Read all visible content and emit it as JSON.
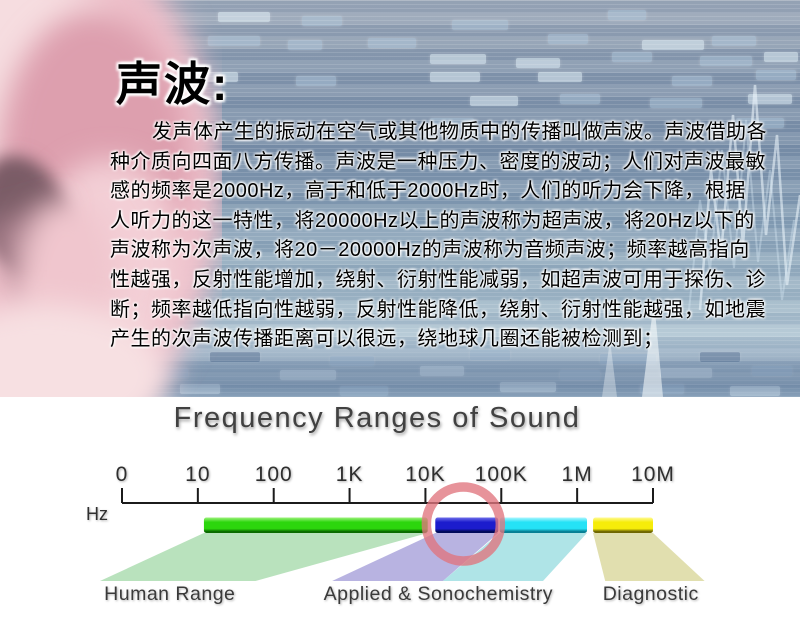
{
  "slide": {
    "title": "声波:",
    "paragraph_lines": [
      "发声体产生的振动在空气或其他物质中的传播叫做声波。声波借助各",
      "种介质向四面八方传播。声波是一种压力、密度的波动；人们对声波最敏",
      "感的频率是2000Hz，高于和低于2000Hz时，人们的听力会下降，根据",
      "人听力的这一特性，将20000Hz以上的声波称为超声波，将20Hz以下的",
      "声波称为次声波，将20－20000Hz的声波称为音频声波；频率越高指向",
      "性越强，反射性能增加，绕射、衍射性能减弱，如超声波可用于探伤、诊",
      "断；频率越低指向性越弱，反射性能降低，绕射、衍射性能越强，如地震",
      "产生的次声波传播距离可以很远，绕地球几圈还能被检测到；"
    ]
  },
  "chart_data": {
    "type": "bar",
    "title": "Frequency Ranges of Sound",
    "axis_unit": "Hz",
    "scale": "log10-decades",
    "tick_labels": [
      "0",
      "10",
      "100",
      "1K",
      "10K",
      "100K",
      "1M",
      "10M"
    ],
    "axis_color": "#1b1b1b",
    "bars": [
      {
        "name": "human-range-bar",
        "color": "#2cd60d",
        "light": "#9ef27d",
        "dark": "#0a6b00",
        "from": 1.08,
        "to": 4.03
      },
      {
        "name": "applied-low-bar",
        "color": "#1c1ccd",
        "light": "#7070ea",
        "dark": "#000a5a",
        "from": 4.13,
        "to": 4.96
      },
      {
        "name": "applied-high-bar",
        "color": "#25e2f6",
        "light": "#aef6ff",
        "dark": "#077f94",
        "from": 4.98,
        "to": 6.13
      },
      {
        "name": "diagnostic-bar",
        "color": "#f6ec0a",
        "light": "#fffa96",
        "dark": "#6f6600",
        "from": 6.21,
        "to": 7.0
      }
    ],
    "beams": [
      {
        "name": "human-range-beam",
        "color": "rgba(116,198,123,0.50)",
        "top_from": 1.08,
        "top_to": 4.03,
        "bottom_from": -0.29,
        "bottom_to": 1.76
      },
      {
        "name": "applied-low-beam",
        "color": "rgba(125,116,201,0.55)",
        "top_from": 4.13,
        "top_to": 4.96,
        "bottom_from": 2.77,
        "bottom_to": 4.23
      },
      {
        "name": "applied-high-beam",
        "color": "rgba(110,205,212,0.55)",
        "top_from": 4.98,
        "top_to": 6.13,
        "bottom_from": 4.23,
        "bottom_to": 5.55
      },
      {
        "name": "diagnostic-beam",
        "color": "rgba(200,197,110,0.55)",
        "top_from": 6.21,
        "top_to": 7.0,
        "bottom_from": 6.37,
        "bottom_to": 7.68
      }
    ],
    "range_labels": [
      {
        "text": "Human Range",
        "center": 0.63
      },
      {
        "text": "Applied & Sonochemistry",
        "center": 4.17
      },
      {
        "text": "Diagnostic",
        "center": 6.97
      }
    ],
    "highlight_ring": {
      "color": "rgba(224,116,126,0.78)",
      "center": 4.5,
      "radius_px": 37,
      "stroke_px": 9.5
    }
  }
}
